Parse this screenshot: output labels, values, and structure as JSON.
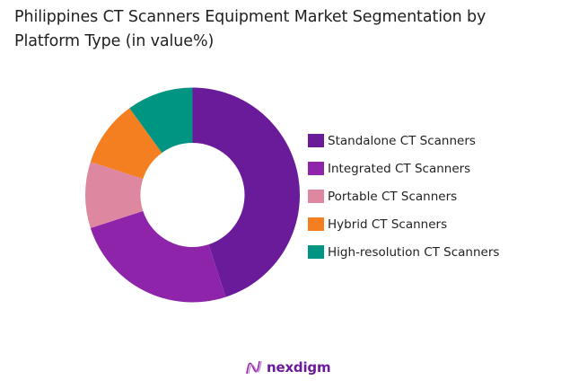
{
  "title": "Philippines CT Scanners Equipment Market Segmentation by Platform Type (in value%)",
  "brand": {
    "name": "nexdigm",
    "icon": "nexdigm-wave-logo-icon",
    "color": "#6a1b9a"
  },
  "chart_data": {
    "type": "pie",
    "subtype": "donut",
    "title": "Philippines CT Scanners Equipment Market Segmentation by Platform Type (in value%)",
    "categories": [
      "Standalone CT Scanners",
      "Integrated CT Scanners",
      "Portable CT Scanners",
      "Hybrid CT Scanners",
      "High-resolution CT Scanners"
    ],
    "values": [
      45,
      25,
      10,
      10,
      10
    ],
    "colors": [
      "#6a1b9a",
      "#8e24aa",
      "#de87a0",
      "#f47f20",
      "#009483"
    ],
    "start_angle": 0,
    "direction": "clockwise",
    "legend_position": "right",
    "data_labels": false
  },
  "legend": [
    {
      "label": "Standalone CT Scanners",
      "color": "#6a1b9a"
    },
    {
      "label": "Integrated CT Scanners",
      "color": "#8e24aa"
    },
    {
      "label": "Portable CT Scanners",
      "color": "#de87a0"
    },
    {
      "label": "Hybrid CT Scanners",
      "color": "#f47f20"
    },
    {
      "label": "High-resolution CT Scanners",
      "color": "#009483"
    }
  ]
}
